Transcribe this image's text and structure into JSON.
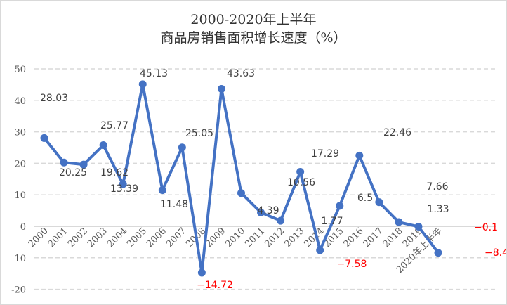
{
  "chart_data": {
    "type": "line",
    "title_line1": "2000-2020年上半年",
    "title_line2": "商品房销售面积增长速度（%）",
    "categories": [
      "2000",
      "2001",
      "2002",
      "2003",
      "2004",
      "2005",
      "2006",
      "2007",
      "2008",
      "2009",
      "2010",
      "2011",
      "2012",
      "2013",
      "2014",
      "2015",
      "2016",
      "2017",
      "2018",
      "2019",
      "2020年上半年"
    ],
    "values": [
      28.03,
      20.25,
      19.62,
      25.77,
      13.39,
      45.13,
      11.48,
      25.05,
      -14.72,
      43.63,
      10.56,
      4.39,
      1.77,
      17.29,
      -7.58,
      6.5,
      22.46,
      7.66,
      1.33,
      -0.1,
      -8.4
    ],
    "data_labels": [
      "28.03",
      "20.25",
      "19.62",
      "25.77",
      "13.39",
      "45.13",
      "11.48",
      "25.05",
      "−14.72",
      "43.63",
      "10.56",
      "4.39",
      "1.77",
      "17.29",
      "−7.58",
      "6.5",
      "22.46",
      "7.66",
      "1.33",
      "−0.1",
      "−8.4"
    ],
    "ylim": [
      -20,
      50
    ],
    "yticks": [
      -20,
      -10,
      0,
      10,
      20,
      30,
      40,
      50
    ],
    "ytick_labels": [
      "-20",
      "-10",
      "0",
      "10",
      "20",
      "30",
      "40",
      "50"
    ],
    "grid": true,
    "line_color": "#4472C4",
    "label_color": "#404040",
    "negative_label_color": "#FF0000"
  }
}
